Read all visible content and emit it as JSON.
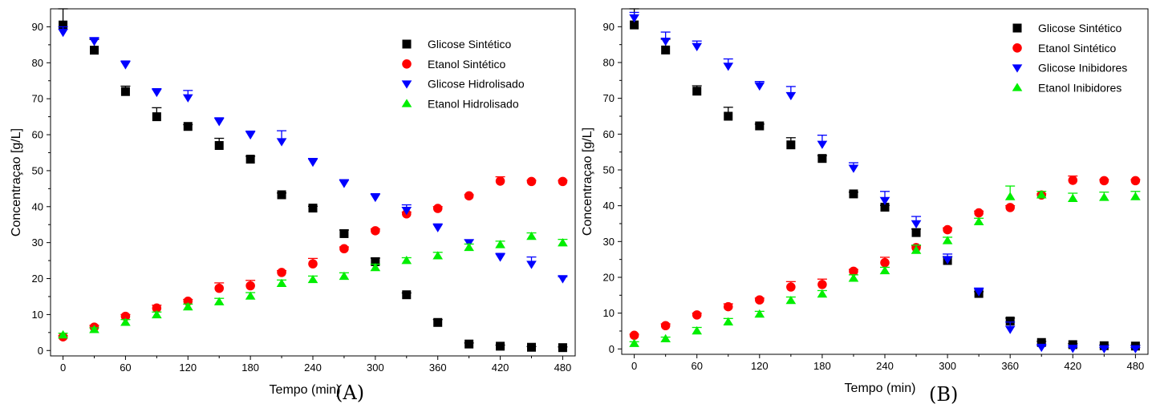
{
  "chart_data": [
    {
      "type": "scatter",
      "title": "",
      "panel_label": "(A)",
      "xlabel": "Tempo (min)",
      "ylabel": "Concentraçao [g/L]",
      "xlim": [
        -12,
        492
      ],
      "ylim": [
        -1.5,
        95
      ],
      "xticks": [
        0,
        60,
        120,
        180,
        240,
        300,
        360,
        420,
        480
      ],
      "yticks": [
        0,
        10,
        20,
        30,
        40,
        50,
        60,
        70,
        80,
        90
      ],
      "legend_position": "top-right",
      "series": [
        {
          "name": "Glicose Sintético",
          "color": "#000000",
          "marker": "square",
          "x": [
            0,
            30,
            60,
            90,
            120,
            150,
            180,
            210,
            240,
            270,
            300,
            330,
            360,
            390,
            420,
            450,
            480
          ],
          "y": [
            90.5,
            83.5,
            72,
            65,
            62.3,
            57,
            53.2,
            43.3,
            39.6,
            32.5,
            24.7,
            15.5,
            7.8,
            1.8,
            1.2,
            0.9,
            0.8
          ],
          "err": [
            4.5,
            3,
            1.5,
            2.5,
            0.5,
            2,
            0.8,
            0.5,
            0.5,
            1,
            1,
            0.5,
            0.8,
            0.3,
            0.3,
            0.2,
            0.2
          ]
        },
        {
          "name": "Etanol Sintético",
          "color": "#ff0000",
          "marker": "circle",
          "x": [
            0,
            30,
            60,
            90,
            120,
            150,
            180,
            210,
            240,
            270,
            300,
            330,
            360,
            390,
            420,
            450,
            480
          ],
          "y": [
            3.8,
            6.5,
            9.5,
            11.8,
            13.7,
            17.3,
            18,
            21.7,
            24.1,
            28.3,
            33.3,
            38,
            39.5,
            43,
            47.1,
            47,
            47
          ],
          "err": [
            0.3,
            0.5,
            0.5,
            0.8,
            0.5,
            1.5,
            1.5,
            0.5,
            1.5,
            0.5,
            0.5,
            0.5,
            0.5,
            0.3,
            1.2,
            0.3,
            0.3
          ]
        },
        {
          "name": "Glicose Hidrolisado",
          "color": "#0000ff",
          "marker": "triangle-down",
          "x": [
            0,
            30,
            60,
            90,
            120,
            150,
            180,
            210,
            240,
            270,
            300,
            330,
            360,
            390,
            420,
            450,
            480
          ],
          "y": [
            88.5,
            86,
            79.5,
            71.8,
            70.3,
            63.7,
            60,
            58.1,
            52.4,
            46.5,
            42.6,
            39,
            34.2,
            30,
            26,
            24,
            20
          ],
          "err": [
            1.5,
            1,
            1,
            1,
            2,
            1,
            1,
            3,
            1,
            1,
            1,
            1.5,
            1,
            0.8,
            1,
            2,
            0.5
          ]
        },
        {
          "name": "Etanol Hidrolisado",
          "color": "#00ee00",
          "marker": "triangle-up",
          "x": [
            0,
            30,
            60,
            90,
            120,
            150,
            180,
            210,
            240,
            270,
            300,
            330,
            360,
            390,
            420,
            450,
            480
          ],
          "y": [
            4.3,
            5.8,
            7.8,
            9.9,
            12.1,
            13.5,
            15.1,
            18.6,
            19.7,
            20.6,
            23,
            25,
            26.3,
            28.6,
            29.4,
            31.7,
            29.9
          ],
          "err": [
            0.5,
            0.5,
            0.8,
            0.8,
            0.8,
            1,
            1,
            1,
            1,
            1,
            1,
            0.8,
            1,
            1,
            1,
            1,
            1
          ]
        }
      ]
    },
    {
      "type": "scatter",
      "title": "",
      "panel_label": "(B)",
      "xlabel": "Tempo (min)",
      "ylabel": "Concentraçao [g/L]",
      "xlim": [
        -12,
        492
      ],
      "ylim": [
        -1.5,
        95
      ],
      "xticks": [
        0,
        60,
        120,
        180,
        240,
        300,
        360,
        420,
        480
      ],
      "yticks": [
        0,
        10,
        20,
        30,
        40,
        50,
        60,
        70,
        80,
        90
      ],
      "legend_position": "top-right",
      "series": [
        {
          "name": "Glicose Sintético",
          "color": "#000000",
          "marker": "square",
          "x": [
            0,
            30,
            60,
            90,
            120,
            150,
            180,
            210,
            240,
            270,
            300,
            330,
            360,
            390,
            420,
            450,
            480
          ],
          "y": [
            90.5,
            83.5,
            72,
            65,
            62.3,
            57,
            53.2,
            43.3,
            39.6,
            32.5,
            24.7,
            15.5,
            7.8,
            1.8,
            1.2,
            0.9,
            0.8
          ],
          "err": [
            4.5,
            3,
            1.5,
            2.5,
            0.5,
            2,
            0.8,
            0.5,
            0.5,
            1,
            1,
            0.5,
            0.8,
            0.3,
            0.3,
            0.2,
            0.2
          ]
        },
        {
          "name": "Etanol Sintético",
          "color": "#ff0000",
          "marker": "circle",
          "x": [
            0,
            30,
            60,
            90,
            120,
            150,
            180,
            210,
            240,
            270,
            300,
            330,
            360,
            390,
            420,
            450,
            480
          ],
          "y": [
            3.8,
            6.5,
            9.5,
            11.8,
            13.7,
            17.3,
            18,
            21.7,
            24.1,
            28.3,
            33.3,
            38,
            39.5,
            43,
            47.1,
            47,
            47
          ],
          "err": [
            0.3,
            0.5,
            0.5,
            0.8,
            0.5,
            1.5,
            1.5,
            0.5,
            1.5,
            0.5,
            0.5,
            0.5,
            0.5,
            0.3,
            1.2,
            0.3,
            0.3
          ]
        },
        {
          "name": "Glicose Inibidores",
          "color": "#0000ff",
          "marker": "triangle-down",
          "x": [
            0,
            30,
            60,
            90,
            120,
            150,
            180,
            210,
            240,
            270,
            300,
            330,
            360,
            390,
            420,
            450,
            480
          ],
          "y": [
            92.5,
            86,
            84.5,
            79,
            73.5,
            70.8,
            57.2,
            50.5,
            41.5,
            35,
            25,
            16,
            5.5,
            0.5,
            0.2,
            0.1,
            0.1
          ],
          "err": [
            1.5,
            2.5,
            1.5,
            2,
            1.2,
            2.5,
            2.5,
            1.5,
            2.5,
            2,
            1.5,
            1,
            2,
            0.5,
            0.3,
            0.3,
            0.3
          ]
        },
        {
          "name": "Etanol Inibidores",
          "color": "#00ee00",
          "marker": "triangle-up",
          "x": [
            0,
            30,
            60,
            90,
            120,
            150,
            180,
            210,
            240,
            270,
            300,
            330,
            360,
            390,
            420,
            450,
            480
          ],
          "y": [
            1.5,
            2.8,
            5,
            7.5,
            9.7,
            13.5,
            15.3,
            19.7,
            21.8,
            27.5,
            30.2,
            35.5,
            42.5,
            43,
            42,
            42.3,
            42.5
          ],
          "err": [
            0.5,
            0.5,
            1,
            1,
            0.8,
            1,
            1,
            1,
            1,
            1.5,
            1,
            1,
            3,
            1,
            1.5,
            1.5,
            1.5
          ]
        }
      ]
    }
  ]
}
